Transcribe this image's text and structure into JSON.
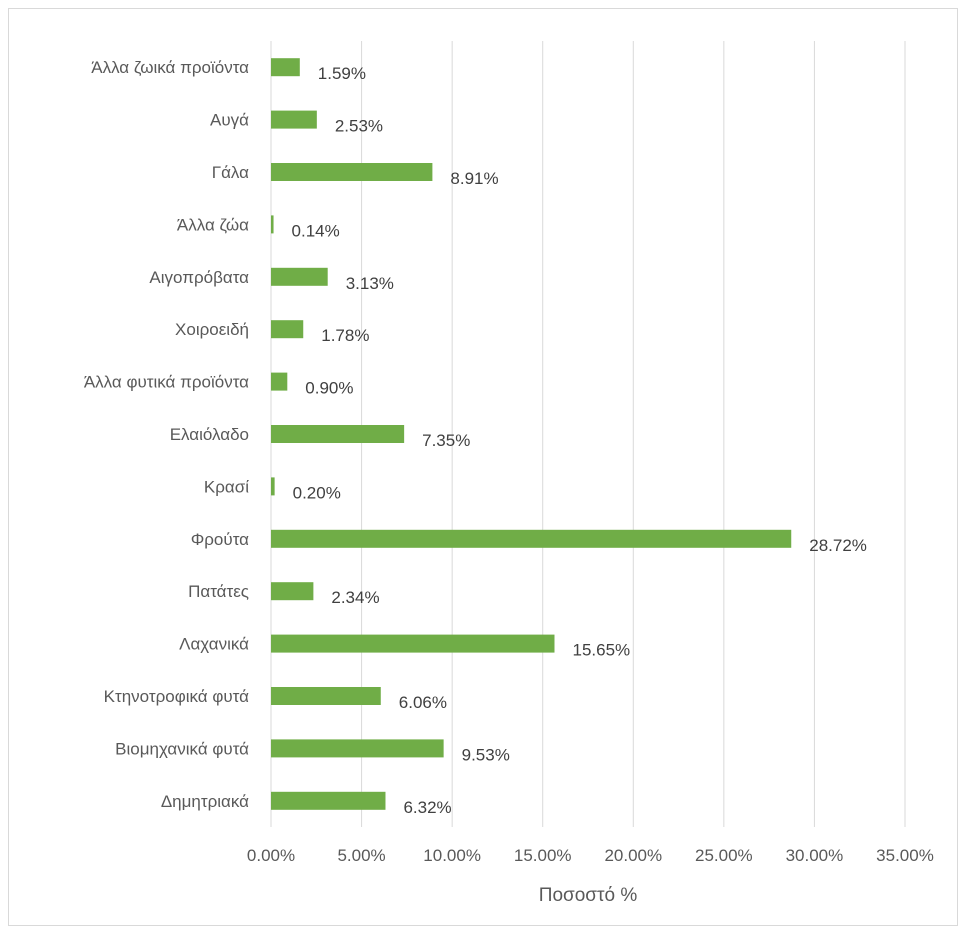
{
  "chart_data": {
    "type": "bar",
    "orientation": "horizontal",
    "categories": [
      "Άλλα ζωικά προϊόντα",
      "Αυγά",
      "Γάλα",
      "Άλλα ζώα",
      "Αιγοπρόβατα",
      "Χοιροειδή",
      "Άλλα φυτικά προϊόντα",
      "Ελαιόλαδο",
      "Κρασί",
      "Φρούτα",
      "Πατάτες",
      "Λαχανικά",
      "Κτηνοτροφικά φυτά",
      "Βιομηχανικά φυτά",
      "Δημητριακά"
    ],
    "values": [
      1.59,
      2.53,
      8.91,
      0.14,
      3.13,
      1.78,
      0.9,
      7.35,
      0.2,
      28.72,
      2.34,
      15.65,
      6.06,
      9.53,
      6.32
    ],
    "data_labels": [
      "1.59%",
      "2.53%",
      "8.91%",
      "0.14%",
      "3.13%",
      "1.78%",
      "0.90%",
      "7.35%",
      "0.20%",
      "28.72%",
      "2.34%",
      "15.65%",
      "6.06%",
      "9.53%",
      "6.32%"
    ],
    "xlim": [
      0,
      35
    ],
    "x_ticks": [
      0,
      5,
      10,
      15,
      20,
      25,
      30,
      35
    ],
    "x_tick_labels": [
      "0.00%",
      "5.00%",
      "10.00%",
      "15.00%",
      "20.00%",
      "25.00%",
      "30.00%",
      "35.00%"
    ],
    "xlabel": "Ποσοστό %",
    "ylabel": "",
    "title": "",
    "grid": "vertical",
    "legend": "none",
    "bar_color": "#70ad47",
    "grid_color": "#d9d9d9"
  }
}
